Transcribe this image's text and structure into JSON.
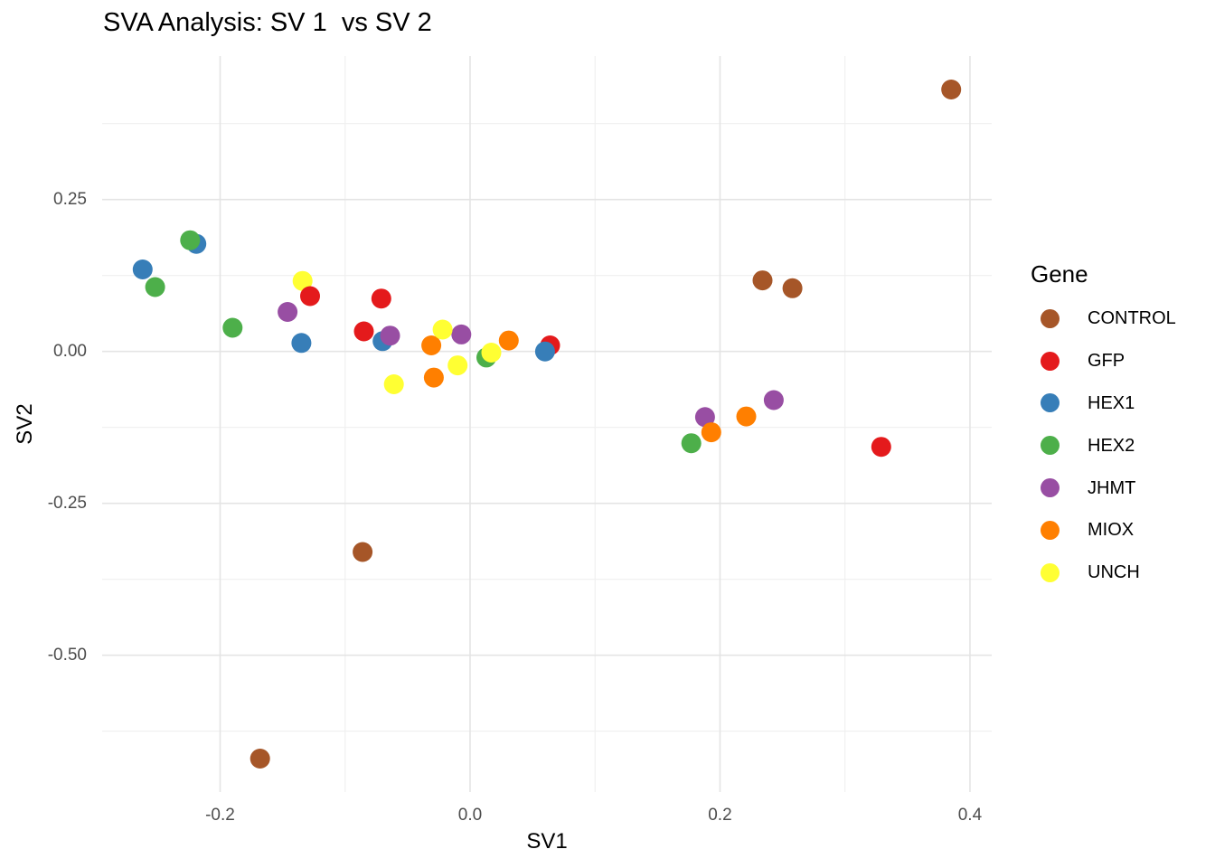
{
  "title": "SVA Analysis: SV 1  vs SV 2",
  "chart_data": {
    "type": "scatter",
    "title": "SVA Analysis: SV 1  vs SV 2",
    "xlabel": "SV1",
    "ylabel": "SV2",
    "background": "#ffffff",
    "grid": {
      "show_major": true,
      "show_minor": true,
      "major_color": "#e4e4e4",
      "minor_color": "#efefef"
    },
    "x_axis": {
      "range": [
        -0.2944,
        0.4174
      ],
      "major_ticks": [
        -0.2,
        0.0,
        0.2,
        0.4
      ],
      "tick_labels": [
        "-0.2",
        "0.0",
        "0.2",
        "0.4"
      ],
      "minor_ticks": [
        -0.1,
        0.1,
        0.3
      ]
    },
    "y_axis": {
      "range": [
        -0.7251,
        0.4861
      ],
      "major_ticks": [
        0.25,
        0.0,
        -0.25,
        -0.5
      ],
      "tick_labels": [
        "0.25",
        "0.00",
        "-0.25",
        "-0.50"
      ],
      "minor_ticks": [
        0.375,
        0.125,
        -0.125,
        -0.375,
        -0.625
      ]
    },
    "legend": {
      "title": "Gene",
      "position": "right",
      "entries": [
        {
          "label": "CONTROL",
          "color": "#A65628"
        },
        {
          "label": "GFP",
          "color": "#E41A1C"
        },
        {
          "label": "HEX1",
          "color": "#377EB8"
        },
        {
          "label": "HEX2",
          "color": "#4DAF4A"
        },
        {
          "label": "JHMT",
          "color": "#984EA3"
        },
        {
          "label": "MIOX",
          "color": "#FF7F00"
        },
        {
          "label": "UNCH",
          "color": "#FFFF33"
        }
      ]
    },
    "point_radius_px": 11,
    "points": [
      {
        "gene": "CONTROL",
        "x": 0.385,
        "y": 0.431
      },
      {
        "gene": "GFP",
        "x": 0.329,
        "y": -0.157
      },
      {
        "gene": "HEX1",
        "x": -0.262,
        "y": 0.135
      },
      {
        "gene": "HEX2",
        "x": -0.252,
        "y": 0.106
      },
      {
        "gene": "JHMT",
        "x": -0.146,
        "y": 0.065
      },
      {
        "gene": "MIOX",
        "x": -0.031,
        "y": 0.01
      },
      {
        "gene": "UNCH",
        "x": -0.134,
        "y": 0.116
      },
      {
        "gene": "CONTROL",
        "x": 0.234,
        "y": 0.117
      },
      {
        "gene": "GFP",
        "x": -0.128,
        "y": 0.091
      },
      {
        "gene": "HEX1",
        "x": -0.219,
        "y": 0.177
      },
      {
        "gene": "HEX2",
        "x": -0.224,
        "y": 0.183
      },
      {
        "gene": "JHMT",
        "x": -0.007,
        "y": 0.028
      },
      {
        "gene": "MIOX",
        "x": 0.031,
        "y": 0.018
      },
      {
        "gene": "UNCH",
        "x": -0.022,
        "y": 0.036
      },
      {
        "gene": "CONTROL",
        "x": 0.258,
        "y": 0.104
      },
      {
        "gene": "GFP",
        "x": -0.071,
        "y": 0.087
      },
      {
        "gene": "HEX1",
        "x": -0.135,
        "y": 0.014
      },
      {
        "gene": "HEX2",
        "x": -0.19,
        "y": 0.039
      },
      {
        "gene": "JHMT",
        "x": 0.188,
        "y": -0.108
      },
      {
        "gene": "MIOX",
        "x": -0.029,
        "y": -0.043
      },
      {
        "gene": "UNCH",
        "x": -0.01,
        "y": -0.023
      },
      {
        "gene": "CONTROL",
        "x": -0.086,
        "y": -0.33
      },
      {
        "gene": "GFP",
        "x": -0.085,
        "y": 0.033
      },
      {
        "gene": "HEX1",
        "x": -0.07,
        "y": 0.017
      },
      {
        "gene": "HEX2",
        "x": 0.013,
        "y": -0.01
      },
      {
        "gene": "JHMT",
        "x": -0.064,
        "y": 0.026
      },
      {
        "gene": "MIOX",
        "x": 0.193,
        "y": -0.133
      },
      {
        "gene": "UNCH",
        "x": 0.017,
        "y": -0.002
      },
      {
        "gene": "CONTROL",
        "x": -0.168,
        "y": -0.67
      },
      {
        "gene": "GFP",
        "x": 0.064,
        "y": 0.01
      },
      {
        "gene": "HEX1",
        "x": 0.06,
        "y": 0.0
      },
      {
        "gene": "HEX2",
        "x": 0.177,
        "y": -0.151
      },
      {
        "gene": "JHMT",
        "x": 0.243,
        "y": -0.08
      },
      {
        "gene": "MIOX",
        "x": 0.221,
        "y": -0.107
      },
      {
        "gene": "UNCH",
        "x": -0.061,
        "y": -0.054
      }
    ]
  }
}
